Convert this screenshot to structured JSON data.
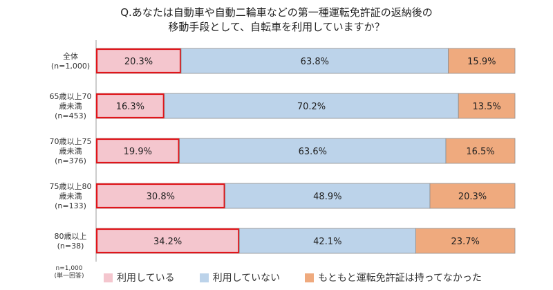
{
  "chart_data": {
    "type": "bar",
    "orientation": "horizontal-stacked-100",
    "title_lines": [
      "Q.あなたは自動車や自動二輪車などの第一種運転免許証の返納後の",
      "移動手段として、自転車を利用していますか？"
    ],
    "categories": [
      [
        "全体",
        "(n=1,000)"
      ],
      [
        "65歳以上70",
        "歳未満",
        "(n=453)"
      ],
      [
        "70歳以上75",
        "歳未満",
        "(n=376)"
      ],
      [
        "75歳以上80",
        "歳未満",
        "(n=133)"
      ],
      [
        "80歳以上",
        "(n=38)"
      ]
    ],
    "series": [
      {
        "name": "利用している",
        "color": "#f4c6ce",
        "highlight": "#e0151a",
        "values": [
          20.3,
          16.3,
          19.9,
          30.8,
          34.2
        ]
      },
      {
        "name": "利用していない",
        "color": "#bcd3ea",
        "values": [
          63.8,
          70.2,
          63.6,
          48.9,
          42.1
        ]
      },
      {
        "name": "もともと運転免許証は持ってなかった",
        "color": "#efaa7e",
        "values": [
          15.9,
          13.5,
          16.5,
          20.3,
          23.7
        ]
      }
    ],
    "value_suffix": "%",
    "xlim": [
      0,
      100
    ],
    "notes": [
      "n=1,000",
      "(単一回答)"
    ]
  }
}
